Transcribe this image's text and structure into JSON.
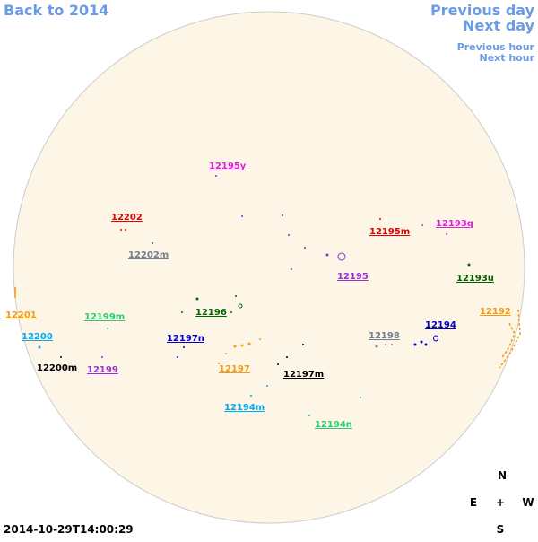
{
  "nav": {
    "back": "Back to 2014",
    "previous_day": "Previous day",
    "next_day": "Next day",
    "previous_hour": "Previous hour",
    "next_hour": "Next hour"
  },
  "regions": [
    "12195y",
    "12202",
    "12202m",
    "12195m",
    "12193q",
    "12195",
    "12193u",
    "12196",
    "12199m",
    "12201",
    "12192",
    "12200",
    "12197n",
    "12198",
    "12194",
    "12200m",
    "12199",
    "12197",
    "12197m",
    "12194m",
    "12194n"
  ],
  "compass": {
    "north": "N",
    "east": "E",
    "center": "+",
    "west": "W",
    "south": "S"
  },
  "timestamp": "2014-10-29T14:00:29"
}
